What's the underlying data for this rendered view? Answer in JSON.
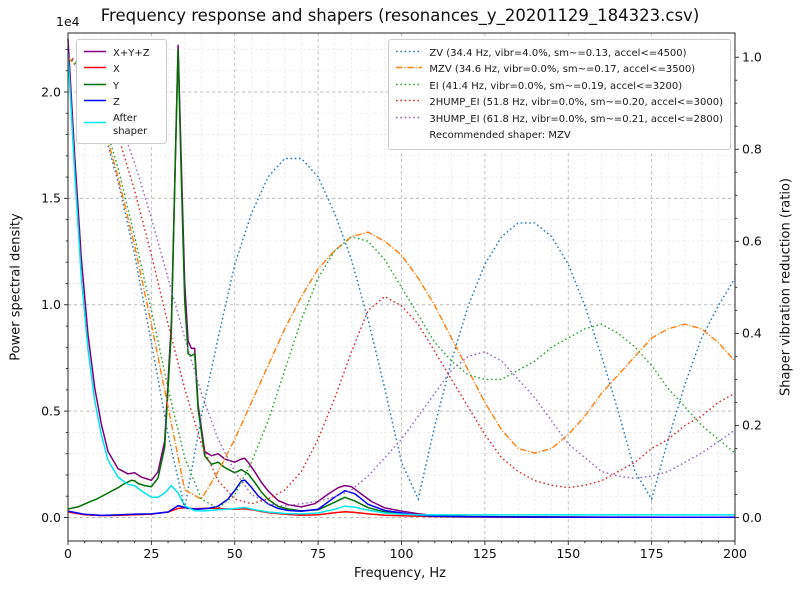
{
  "chart_data": {
    "type": "line",
    "title": "Frequency response and shapers (resonances_y_20201129_184323.csv)",
    "xlabel": "Frequency, Hz",
    "ylabel_left": "Power spectral density",
    "ylabel_right": "Shaper vibration reduction (ratio)",
    "y_left_offset": "1e4",
    "x_range": [
      0,
      200
    ],
    "y_left_range": [
      0,
      22800
    ],
    "y_right_range": [
      0,
      1.0
    ],
    "x_ticks": [
      0,
      25,
      50,
      75,
      100,
      125,
      150,
      175,
      200
    ],
    "y_left_ticks": [
      0,
      5000,
      10000,
      15000,
      20000
    ],
    "y_left_tick_labels": [
      "0.0",
      "0.5",
      "1.0",
      "1.5",
      "2.0"
    ],
    "y_right_ticks": [
      0,
      0.2,
      0.4,
      0.6,
      0.8,
      1.0
    ],
    "y_right_tick_labels": [
      "0.0",
      "0.2",
      "0.4",
      "0.6",
      "0.8",
      "1.0"
    ],
    "grid": {
      "major": true,
      "minor": true,
      "x_minor_step": 5,
      "y_minor_step": 1000
    },
    "psd_series": [
      {
        "name": "x_y_z",
        "label": "X+Y+Z",
        "color": "#800080",
        "style": "solid",
        "axis": "left",
        "x": [
          0,
          2,
          4,
          6,
          8,
          10,
          12,
          15,
          18,
          20,
          22,
          25,
          27,
          29,
          31,
          33,
          34,
          35,
          36,
          37,
          38,
          39,
          41,
          43,
          45,
          47,
          50,
          52,
          53,
          54,
          56,
          58,
          60,
          63,
          66,
          70,
          74,
          78,
          81,
          83,
          85,
          88,
          91,
          95,
          100,
          105,
          110,
          120,
          140,
          160,
          180,
          200
        ],
        "y": [
          22500,
          17000,
          12200,
          8600,
          6100,
          4400,
          3100,
          2300,
          2050,
          2100,
          1900,
          1750,
          2150,
          3600,
          9200,
          22200,
          16500,
          11000,
          8300,
          7950,
          7950,
          5300,
          3100,
          2900,
          3000,
          2750,
          2600,
          2750,
          2780,
          2600,
          2150,
          1650,
          1250,
          800,
          600,
          500,
          650,
          1100,
          1400,
          1500,
          1450,
          1100,
          750,
          450,
          300,
          180,
          90,
          45,
          28,
          18,
          14,
          12
        ]
      },
      {
        "name": "x",
        "label": "X",
        "color": "#ff0000",
        "style": "solid",
        "axis": "left",
        "x": [
          0,
          5,
          10,
          15,
          20,
          25,
          30,
          33,
          35,
          38,
          41,
          44,
          47,
          50,
          53,
          56,
          60,
          65,
          70,
          75,
          80,
          83,
          86,
          90,
          95,
          100,
          110,
          120,
          140,
          160,
          180,
          200
        ],
        "y": [
          260,
          130,
          90,
          100,
          130,
          160,
          260,
          430,
          460,
          410,
          430,
          440,
          410,
          390,
          410,
          340,
          230,
          150,
          110,
          130,
          220,
          270,
          240,
          170,
          110,
          80,
          40,
          25,
          15,
          10,
          8,
          8
        ]
      },
      {
        "name": "y",
        "label": "Y",
        "color": "#007000",
        "style": "solid",
        "axis": "left",
        "x": [
          0,
          3,
          6,
          9,
          12,
          15,
          17,
          19,
          20,
          21,
          23,
          25,
          27,
          29,
          31,
          32,
          33,
          34,
          35,
          36,
          37,
          38,
          39,
          41,
          43,
          45,
          47,
          50,
          52,
          54,
          56,
          58,
          60,
          63,
          66,
          70,
          75,
          80,
          83,
          86,
          90,
          95,
          100,
          105,
          110,
          120,
          140,
          160,
          180,
          200
        ],
        "y": [
          400,
          500,
          700,
          900,
          1150,
          1400,
          1600,
          1750,
          1720,
          1600,
          1500,
          1450,
          1850,
          3300,
          8800,
          15500,
          22000,
          15800,
          10200,
          7700,
          7600,
          7700,
          5100,
          2900,
          2500,
          2600,
          2350,
          2100,
          2250,
          2050,
          1650,
          1200,
          850,
          520,
          400,
          310,
          360,
          720,
          950,
          780,
          460,
          260,
          190,
          115,
          60,
          35,
          22,
          15,
          10,
          8
        ]
      },
      {
        "name": "z",
        "label": "Z",
        "color": "#0000ff",
        "style": "solid",
        "axis": "left",
        "x": [
          0,
          5,
          10,
          15,
          20,
          25,
          30,
          33,
          36,
          39,
          42,
          45,
          48,
          50,
          52,
          53,
          55,
          57,
          60,
          63,
          66,
          70,
          75,
          80,
          83,
          86,
          90,
          95,
          100,
          105,
          110,
          120,
          140,
          160,
          180,
          200
        ],
        "y": [
          300,
          150,
          100,
          120,
          160,
          170,
          260,
          560,
          430,
          390,
          430,
          530,
          870,
          1280,
          1720,
          1760,
          1420,
          1020,
          640,
          430,
          330,
          290,
          390,
          960,
          1260,
          1120,
          620,
          330,
          215,
          115,
          62,
          36,
          20,
          14,
          10,
          10
        ]
      },
      {
        "name": "after_shaper",
        "label": "After shaper",
        "color": "#00e5ee",
        "style": "solid",
        "axis": "left",
        "x": [
          0,
          2,
          4,
          6,
          8,
          10,
          12,
          15,
          18,
          20,
          22,
          25,
          27,
          29,
          31,
          33,
          35,
          38,
          41,
          45,
          50,
          53,
          56,
          60,
          65,
          70,
          75,
          80,
          83,
          86,
          90,
          95,
          100,
          105,
          110,
          120,
          140,
          160,
          180,
          200
        ],
        "y": [
          21800,
          16200,
          11300,
          7900,
          5500,
          3900,
          2700,
          1900,
          1550,
          1500,
          1250,
          950,
          950,
          1150,
          1500,
          1150,
          550,
          320,
          310,
          360,
          420,
          470,
          360,
          260,
          190,
          170,
          210,
          390,
          530,
          490,
          340,
          210,
          160,
          120,
          120,
          120,
          120,
          120,
          120,
          120
        ]
      }
    ],
    "shaper_x_start": 0,
    "shaper_x_step": 5,
    "shaper_series": [
      {
        "name": "zv",
        "label": "ZV (34.4 Hz, vibr=4.0%, sm~=0.13, accel<=4500)",
        "color": "#1f77b4",
        "style": "dotted",
        "axis": "right",
        "values": [
          1.0,
          0.96,
          0.86,
          0.73,
          0.57,
          0.38,
          0.18,
          0.02,
          0.22,
          0.39,
          0.55,
          0.66,
          0.74,
          0.78,
          0.78,
          0.74,
          0.66,
          0.56,
          0.43,
          0.28,
          0.12,
          0.04,
          0.2,
          0.34,
          0.46,
          0.55,
          0.61,
          0.64,
          0.64,
          0.61,
          0.55,
          0.46,
          0.35,
          0.23,
          0.1,
          0.04,
          0.17,
          0.29,
          0.39,
          0.46,
          0.52
        ]
      },
      {
        "name": "mzv",
        "label": "MZV (34.6 Hz, vibr=0.0%, sm~=0.17, accel<=3500)",
        "color": "#ff7f0e",
        "style": "dashdot",
        "axis": "right",
        "values": [
          1.0,
          0.96,
          0.87,
          0.74,
          0.59,
          0.42,
          0.24,
          0.06,
          0.04,
          0.1,
          0.17,
          0.25,
          0.33,
          0.41,
          0.48,
          0.54,
          0.58,
          0.61,
          0.62,
          0.6,
          0.57,
          0.52,
          0.46,
          0.39,
          0.32,
          0.25,
          0.19,
          0.15,
          0.14,
          0.15,
          0.18,
          0.22,
          0.27,
          0.31,
          0.35,
          0.39,
          0.41,
          0.42,
          0.41,
          0.38,
          0.34
        ]
      },
      {
        "name": "ei",
        "label": "EI (41.4 Hz, vibr=0.0%, sm~=0.19, accel<=3200)",
        "color": "#2ca02c",
        "style": "dotted",
        "axis": "right",
        "values": [
          1.0,
          0.97,
          0.88,
          0.76,
          0.61,
          0.45,
          0.28,
          0.13,
          0.04,
          0.02,
          0.05,
          0.12,
          0.21,
          0.32,
          0.43,
          0.52,
          0.58,
          0.61,
          0.6,
          0.56,
          0.5,
          0.44,
          0.38,
          0.34,
          0.31,
          0.3,
          0.3,
          0.32,
          0.34,
          0.37,
          0.39,
          0.41,
          0.42,
          0.4,
          0.37,
          0.33,
          0.28,
          0.24,
          0.2,
          0.17,
          0.14
        ]
      },
      {
        "name": "2hump_ei",
        "label": "2HUMP_EI (51.8 Hz, vibr=0.0%, sm~=0.20, accel<=3000)",
        "color": "#d62728",
        "style": "dotted",
        "axis": "right",
        "values": [
          1.0,
          0.98,
          0.92,
          0.83,
          0.71,
          0.57,
          0.42,
          0.28,
          0.16,
          0.08,
          0.04,
          0.03,
          0.04,
          0.06,
          0.1,
          0.17,
          0.26,
          0.36,
          0.45,
          0.48,
          0.46,
          0.42,
          0.36,
          0.3,
          0.24,
          0.18,
          0.13,
          0.1,
          0.08,
          0.07,
          0.065,
          0.07,
          0.08,
          0.1,
          0.12,
          0.15,
          0.17,
          0.2,
          0.22,
          0.25,
          0.27
        ]
      },
      {
        "name": "3hump_ei",
        "label": "3HUMP_EI (61.8 Hz, vibr=0.0%, sm~=0.21, accel<=2800)",
        "color": "#9467bd",
        "style": "dotted",
        "axis": "right",
        "values": [
          1.0,
          0.99,
          0.94,
          0.87,
          0.77,
          0.65,
          0.52,
          0.39,
          0.27,
          0.17,
          0.1,
          0.05,
          0.03,
          0.025,
          0.03,
          0.035,
          0.045,
          0.06,
          0.09,
          0.13,
          0.17,
          0.22,
          0.27,
          0.32,
          0.35,
          0.36,
          0.34,
          0.3,
          0.26,
          0.21,
          0.16,
          0.13,
          0.1,
          0.09,
          0.085,
          0.09,
          0.1,
          0.12,
          0.14,
          0.165,
          0.19
        ]
      }
    ],
    "recommended_label": "Recommended shaper: MZV"
  }
}
